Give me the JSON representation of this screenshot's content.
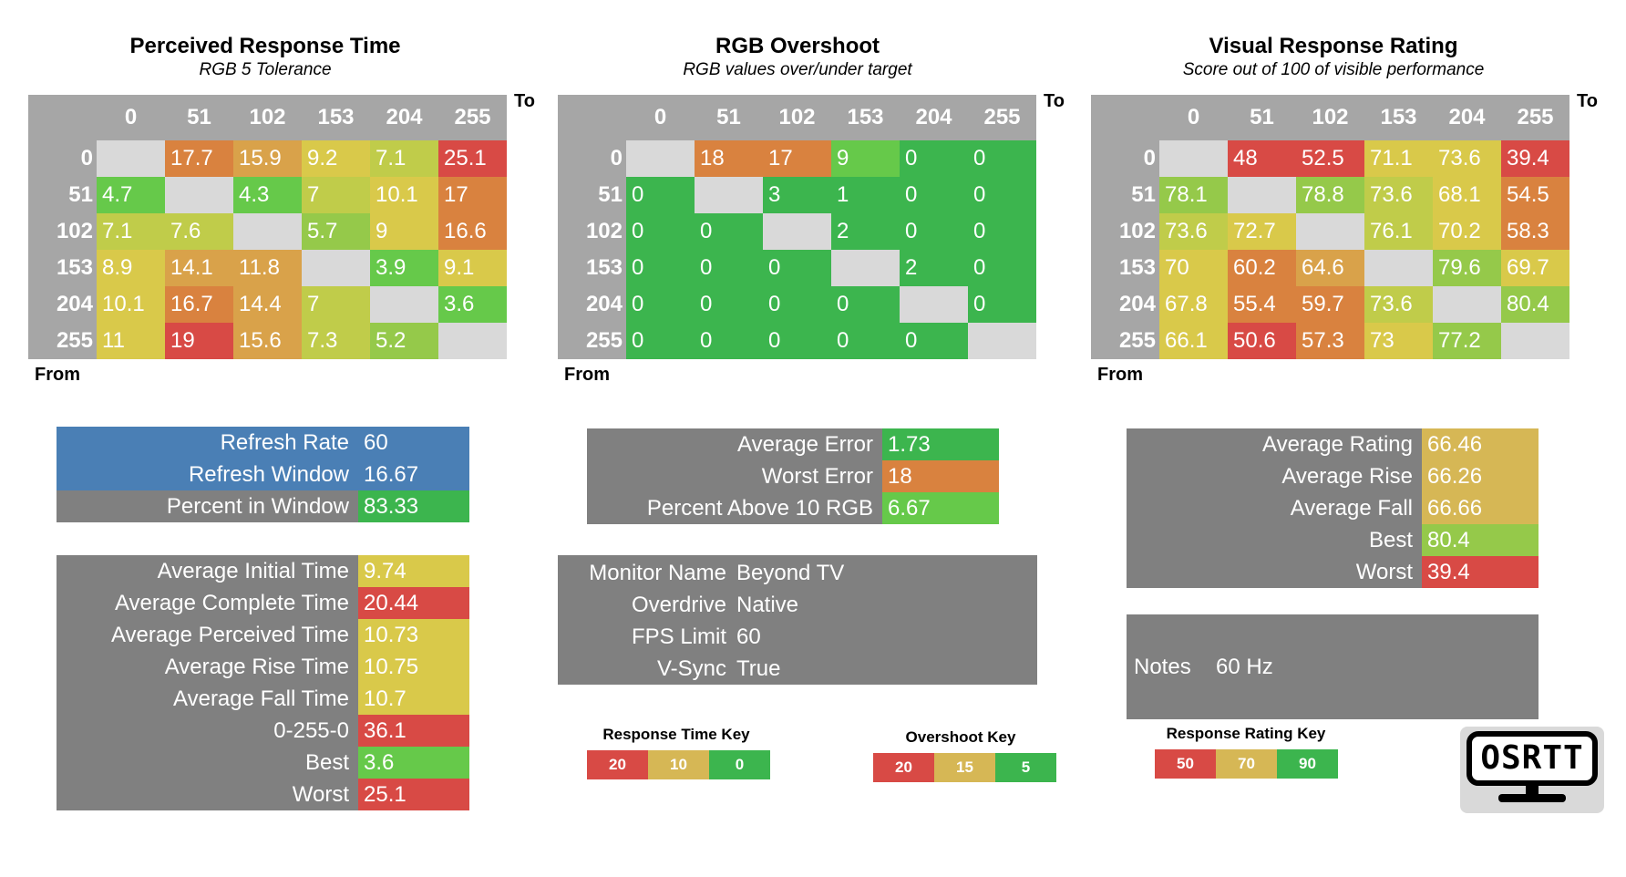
{
  "colors": {
    "gray": "#808080",
    "header_gray": "#a6a6a6",
    "diag": "#d9d9d9",
    "blue": "#4a7fb5",
    "green_dark": "#3cb54e",
    "green": "#66c94a",
    "green_light": "#95c94a",
    "yellow_green": "#c0cc4a",
    "yellow": "#d9c94a",
    "tan": "#d6b755",
    "orange_light": "#d9a24a",
    "orange": "#d9823f",
    "red": "#d84a45"
  },
  "matrices": [
    {
      "title": "Perceived Response Time",
      "subtitle": "RGB 5 Tolerance",
      "to_label": "To",
      "from_label": "From",
      "columns": [
        "0",
        "51",
        "102",
        "153",
        "204",
        "255"
      ],
      "rows": [
        {
          "label": "0",
          "cells": [
            "",
            "17.7",
            "15.9",
            "9.2",
            "7.1",
            "25.1"
          ],
          "colors": [
            "diag",
            "orange",
            "orange_light",
            "yellow",
            "yellow_green",
            "red"
          ]
        },
        {
          "label": "51",
          "cells": [
            "4.7",
            "",
            "4.3",
            "7",
            "10.1",
            "17"
          ],
          "colors": [
            "green",
            "diag",
            "green",
            "yellow_green",
            "yellow",
            "orange"
          ]
        },
        {
          "label": "102",
          "cells": [
            "7.1",
            "7.6",
            "",
            "5.7",
            "9",
            "16.6"
          ],
          "colors": [
            "yellow_green",
            "yellow_green",
            "diag",
            "green_light",
            "yellow",
            "orange"
          ]
        },
        {
          "label": "153",
          "cells": [
            "8.9",
            "14.1",
            "11.8",
            "",
            "3.9",
            "9.1"
          ],
          "colors": [
            "yellow",
            "orange_light",
            "orange_light",
            "diag",
            "green",
            "yellow"
          ]
        },
        {
          "label": "204",
          "cells": [
            "10.1",
            "16.7",
            "14.4",
            "7",
            "",
            "3.6"
          ],
          "colors": [
            "yellow",
            "orange",
            "orange_light",
            "yellow_green",
            "diag",
            "green"
          ]
        },
        {
          "label": "255",
          "cells": [
            "11",
            "19",
            "15.6",
            "7.3",
            "5.2",
            ""
          ],
          "colors": [
            "yellow",
            "red",
            "orange_light",
            "yellow_green",
            "green_light",
            "diag"
          ]
        }
      ]
    },
    {
      "title": "RGB Overshoot",
      "subtitle": "RGB values over/under target",
      "to_label": "To",
      "from_label": "From",
      "columns": [
        "0",
        "51",
        "102",
        "153",
        "204",
        "255"
      ],
      "rows": [
        {
          "label": "0",
          "cells": [
            "",
            "18",
            "17",
            "9",
            "0",
            "0"
          ],
          "colors": [
            "diag",
            "orange",
            "orange",
            "green",
            "green_dark",
            "green_dark"
          ]
        },
        {
          "label": "51",
          "cells": [
            "0",
            "",
            "3",
            "1",
            "0",
            "0"
          ],
          "colors": [
            "green_dark",
            "diag",
            "green_dark",
            "green_dark",
            "green_dark",
            "green_dark"
          ]
        },
        {
          "label": "102",
          "cells": [
            "0",
            "0",
            "",
            "2",
            "0",
            "0"
          ],
          "colors": [
            "green_dark",
            "green_dark",
            "diag",
            "green_dark",
            "green_dark",
            "green_dark"
          ]
        },
        {
          "label": "153",
          "cells": [
            "0",
            "0",
            "0",
            "",
            "2",
            "0"
          ],
          "colors": [
            "green_dark",
            "green_dark",
            "green_dark",
            "diag",
            "green_dark",
            "green_dark"
          ]
        },
        {
          "label": "204",
          "cells": [
            "0",
            "0",
            "0",
            "0",
            "",
            "0"
          ],
          "colors": [
            "green_dark",
            "green_dark",
            "green_dark",
            "green_dark",
            "diag",
            "green_dark"
          ]
        },
        {
          "label": "255",
          "cells": [
            "0",
            "0",
            "0",
            "0",
            "0",
            ""
          ],
          "colors": [
            "green_dark",
            "green_dark",
            "green_dark",
            "green_dark",
            "green_dark",
            "diag"
          ]
        }
      ]
    },
    {
      "title": "Visual Response Rating",
      "subtitle": "Score out of 100 of visible performance",
      "to_label": "To",
      "from_label": "From",
      "columns": [
        "0",
        "51",
        "102",
        "153",
        "204",
        "255"
      ],
      "rows": [
        {
          "label": "0",
          "cells": [
            "",
            "48",
            "52.5",
            "71.1",
            "73.6",
            "39.4"
          ],
          "colors": [
            "diag",
            "red",
            "red",
            "yellow",
            "yellow",
            "red"
          ]
        },
        {
          "label": "51",
          "cells": [
            "78.1",
            "",
            "78.8",
            "73.6",
            "68.1",
            "54.5"
          ],
          "colors": [
            "green_light",
            "diag",
            "green_light",
            "yellow_green",
            "yellow",
            "orange"
          ]
        },
        {
          "label": "102",
          "cells": [
            "73.6",
            "72.7",
            "",
            "76.1",
            "70.2",
            "58.3"
          ],
          "colors": [
            "yellow_green",
            "yellow",
            "diag",
            "yellow_green",
            "yellow",
            "orange"
          ]
        },
        {
          "label": "153",
          "cells": [
            "70",
            "60.2",
            "64.6",
            "",
            "79.6",
            "69.7"
          ],
          "colors": [
            "yellow",
            "orange",
            "orange_light",
            "diag",
            "green_light",
            "yellow"
          ]
        },
        {
          "label": "204",
          "cells": [
            "67.8",
            "55.4",
            "59.7",
            "73.6",
            "",
            "80.4"
          ],
          "colors": [
            "yellow",
            "orange",
            "orange",
            "yellow_green",
            "diag",
            "green_light"
          ]
        },
        {
          "label": "255",
          "cells": [
            "66.1",
            "50.6",
            "57.3",
            "73",
            "77.2",
            ""
          ],
          "colors": [
            "yellow",
            "red",
            "orange",
            "yellow",
            "green_light",
            "diag"
          ]
        }
      ]
    }
  ],
  "refresh_panel": [
    {
      "label": "Refresh Rate",
      "value": "60",
      "label_color": "blue",
      "value_color": "blue"
    },
    {
      "label": "Refresh Window",
      "value": "16.67",
      "label_color": "blue",
      "value_color": "blue"
    },
    {
      "label": "Percent in Window",
      "value": "83.33",
      "label_color": "gray",
      "value_color": "green_dark"
    }
  ],
  "time_panel": [
    {
      "label": "Average Initial Time",
      "value": "9.74",
      "value_color": "yellow"
    },
    {
      "label": "Average Complete Time",
      "value": "20.44",
      "value_color": "red"
    },
    {
      "label": "Average Perceived Time",
      "value": "10.73",
      "value_color": "yellow"
    },
    {
      "label": "Average Rise Time",
      "value": "10.75",
      "value_color": "yellow"
    },
    {
      "label": "Average Fall Time",
      "value": "10.7",
      "value_color": "yellow"
    },
    {
      "label": "0-255-0",
      "value": "36.1",
      "value_color": "red"
    },
    {
      "label": "Best",
      "value": "3.6",
      "value_color": "green"
    },
    {
      "label": "Worst",
      "value": "25.1",
      "value_color": "red"
    }
  ],
  "error_panel": [
    {
      "label": "Average Error",
      "value": "1.73",
      "value_color": "green_dark"
    },
    {
      "label": "Worst Error",
      "value": "18",
      "value_color": "orange"
    },
    {
      "label": "Percent Above 10 RGB",
      "value": "6.67",
      "value_color": "green"
    }
  ],
  "monitor_panel": [
    {
      "label": "Monitor Name",
      "value": "Beyond TV"
    },
    {
      "label": "Overdrive",
      "value": "Native"
    },
    {
      "label": "FPS Limit",
      "value": "60"
    },
    {
      "label": "V-Sync",
      "value": "True"
    }
  ],
  "rating_panel": [
    {
      "label": "Average Rating",
      "value": "66.46",
      "value_color": "tan"
    },
    {
      "label": "Average Rise",
      "value": "66.26",
      "value_color": "tan"
    },
    {
      "label": "Average Fall",
      "value": "66.66",
      "value_color": "tan"
    },
    {
      "label": "Best",
      "value": "80.4",
      "value_color": "green_light"
    },
    {
      "label": "Worst",
      "value": "39.4",
      "value_color": "red"
    }
  ],
  "notes": {
    "label": "Notes",
    "value": "60 Hz"
  },
  "keys": [
    {
      "title": "Response Time Key",
      "values": [
        "20",
        "10",
        "0"
      ],
      "colors": [
        "red",
        "tan",
        "green_dark"
      ]
    },
    {
      "title": "Overshoot Key",
      "values": [
        "20",
        "15",
        "5"
      ],
      "colors": [
        "red",
        "tan",
        "green_dark"
      ]
    },
    {
      "title": "Response Rating Key",
      "values": [
        "50",
        "70",
        "90"
      ],
      "colors": [
        "red",
        "tan",
        "green_dark"
      ]
    }
  ],
  "logo": {
    "text": "OSRTT",
    "icon": "monitor-icon"
  }
}
